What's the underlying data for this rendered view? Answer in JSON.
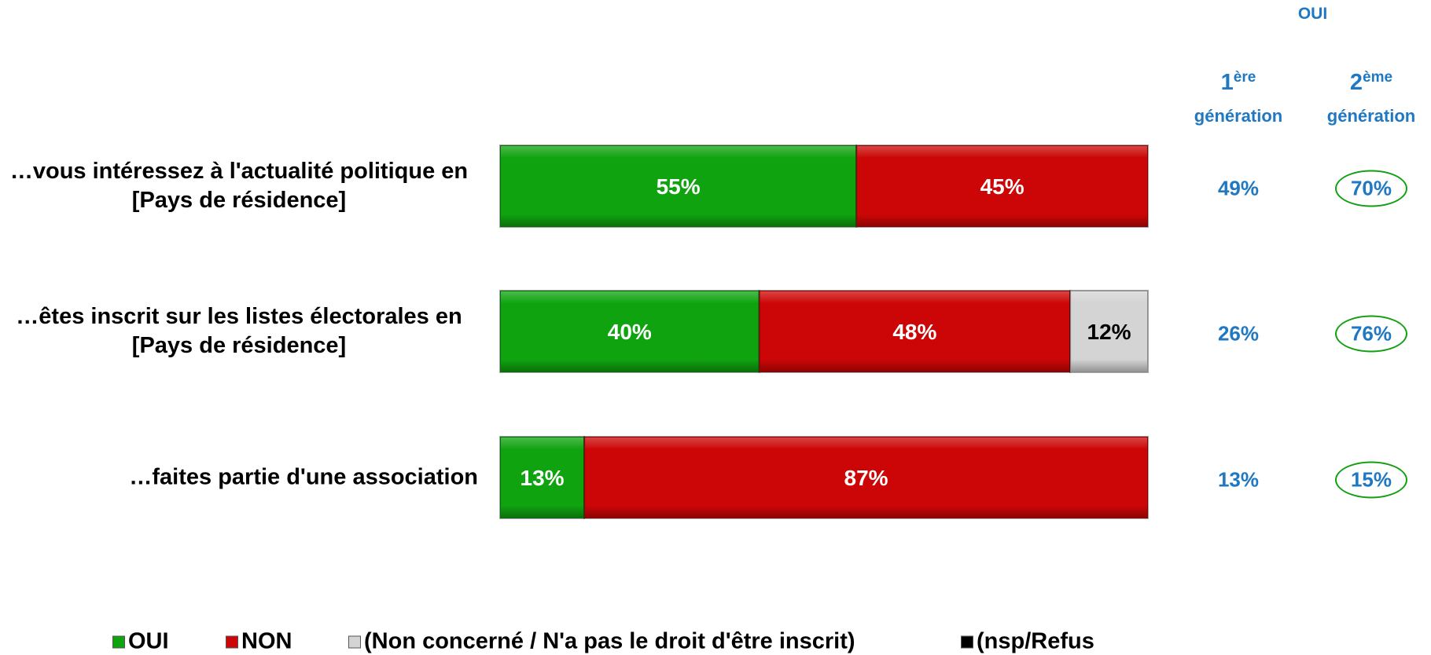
{
  "chart_data": {
    "type": "bar",
    "orientation": "horizontal",
    "stacked": true,
    "categories": [
      "…vous intéressez à l'actualité politique en [Pays de résidence]",
      "…êtes inscrit sur les listes électorales en [Pays de résidence]",
      "…faites partie d'une association"
    ],
    "xlim": [
      0,
      100
    ],
    "series": [
      {
        "name": "OUI",
        "color": "#0fa30f",
        "label_color": "#ffffff",
        "values": [
          55,
          40,
          13
        ],
        "value_labels": [
          "55%",
          "40%",
          "13%"
        ]
      },
      {
        "name": "NON",
        "color": "#cc0606",
        "label_color": "#ffffff",
        "values": [
          45,
          48,
          87
        ],
        "value_labels": [
          "45%",
          "48%",
          "87%"
        ]
      },
      {
        "name": "(Non concerné / N'a pas le droit d'être inscrit)",
        "color": "#d4d4d4",
        "label_color": "#000000",
        "values": [
          null,
          12,
          null
        ],
        "value_labels": [
          null,
          "12%",
          null
        ]
      },
      {
        "name": "(nsp/Refus",
        "color": "#000000",
        "label_color": "#ffffff",
        "values": [
          null,
          null,
          null
        ],
        "value_labels": [
          null,
          null,
          null
        ]
      }
    ],
    "side_title": "OUI",
    "side_columns": [
      {
        "number": "1",
        "sup": "ère",
        "text": "génération",
        "values": [
          49,
          26,
          13
        ],
        "value_labels": [
          "49%",
          "26%",
          "13%"
        ],
        "circled": false
      },
      {
        "number": "2",
        "sup": "ème",
        "text": "génération",
        "values": [
          70,
          76,
          15
        ],
        "value_labels": [
          "70%",
          "76%",
          "15%"
        ],
        "circled": true
      }
    ]
  }
}
